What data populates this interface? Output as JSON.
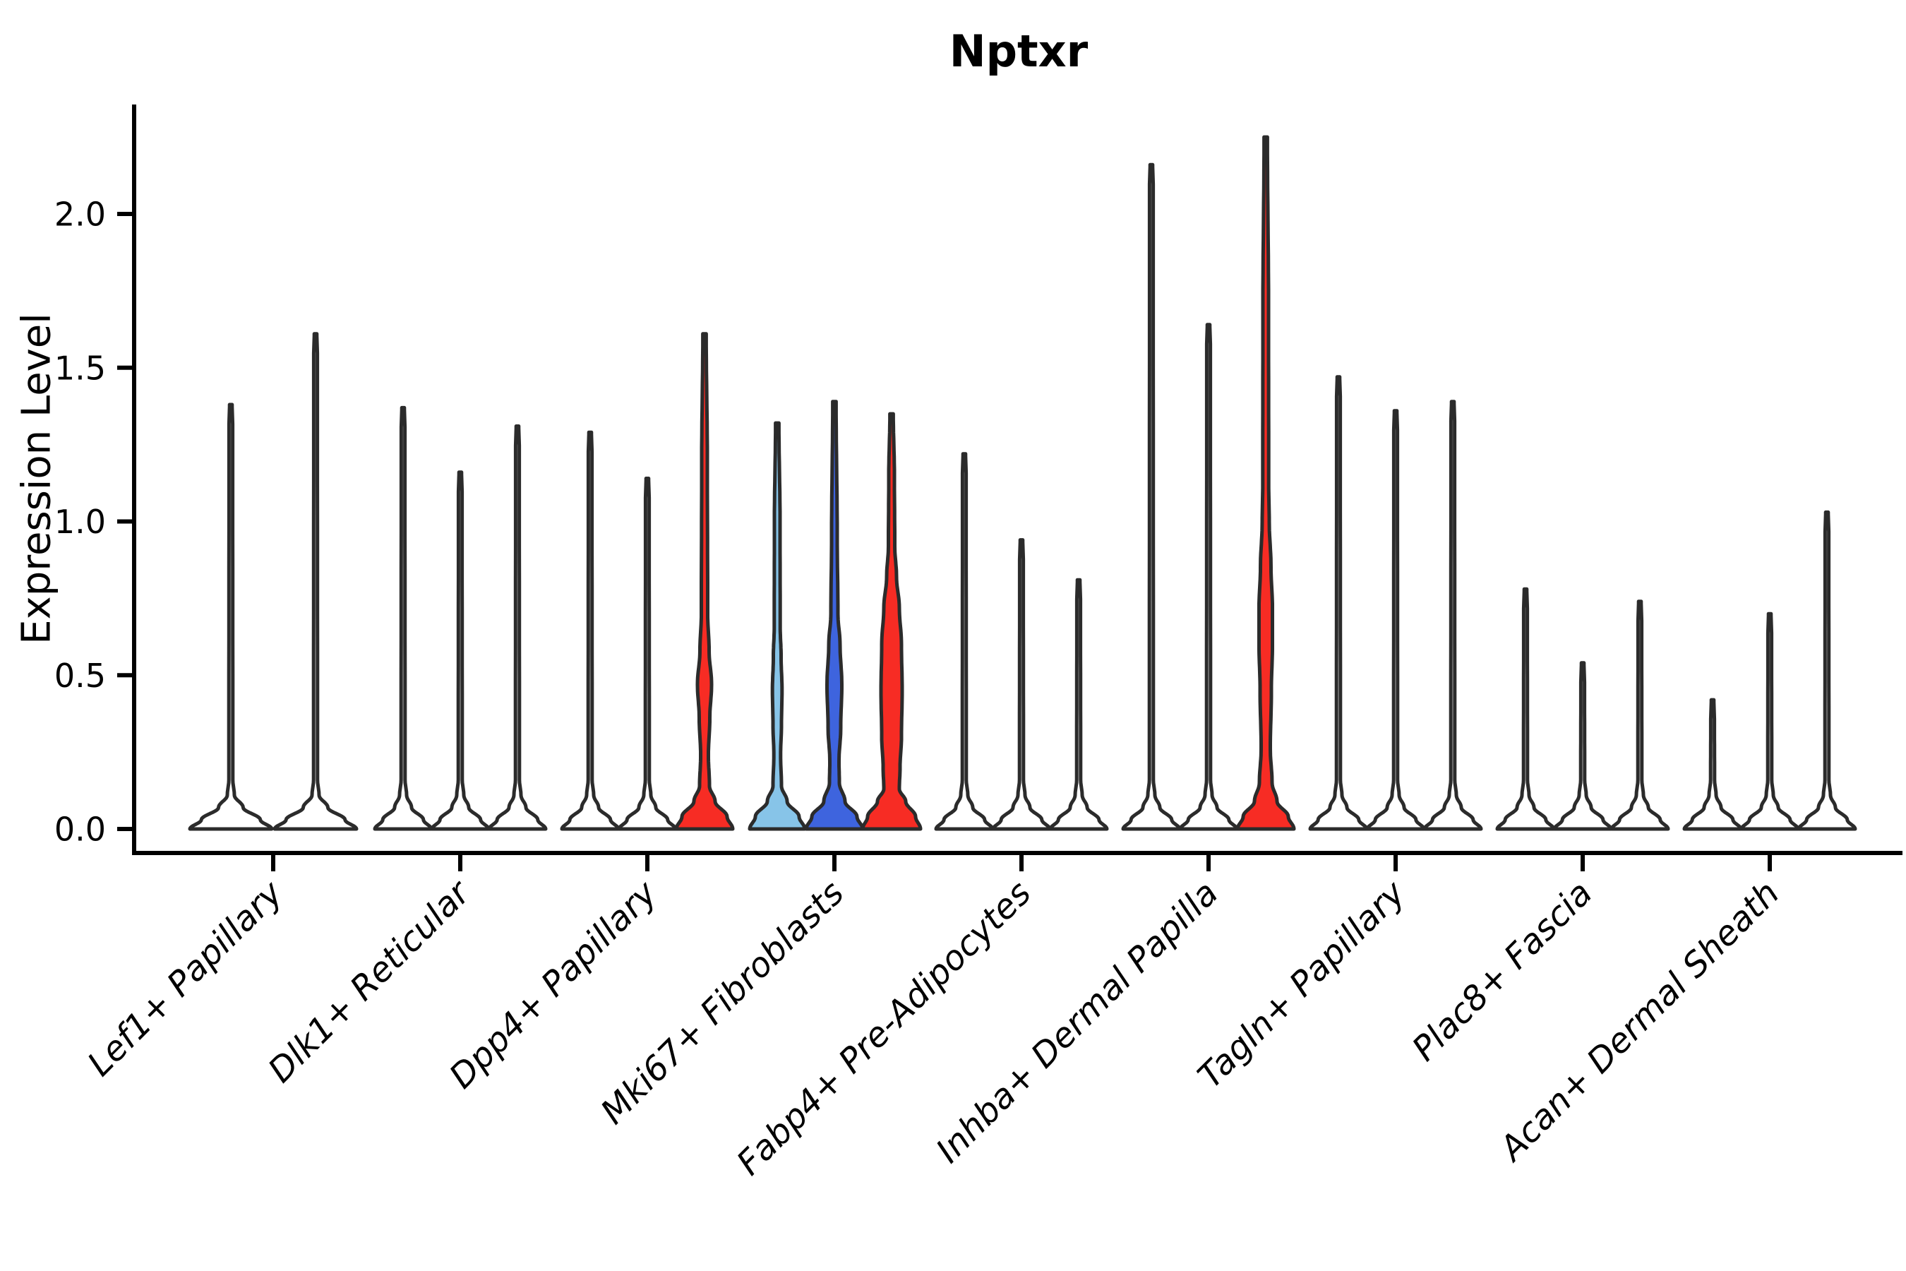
{
  "title": "Nptxr",
  "ylabel": "Expression Level",
  "colors": {
    "outline": "#2B2B2B",
    "plain": "#FFFFFF",
    "red": "#F72C24",
    "lightblue": "#87C4E8",
    "blue": "#3E64DE",
    "background": "#FFFFFF",
    "text": "#000000"
  },
  "chart_data": {
    "type": "violin",
    "title": "Nptxr",
    "xlabel": "",
    "ylabel": "Expression Level",
    "ylim": [
      0,
      2.35
    ],
    "yticks": [
      0.0,
      0.5,
      1.0,
      1.5,
      2.0
    ],
    "grid": false,
    "legend": "none",
    "categories": [
      "Lef1+ Papillary",
      "Dlk1+ Reticular",
      "Dpp4+ Papillary",
      "Mki67+ Fibroblasts",
      "Fabp4+ Pre-Adipocytes",
      "Inhba+ Dermal Papilla",
      "Tagln+ Papillary",
      "Plac8+ Fascia",
      "Acan+ Dermal Sheath"
    ],
    "groups": [
      {
        "category": "Lef1+ Papillary",
        "violins": [
          {
            "fill": "plain",
            "max": 1.38
          },
          {
            "fill": "plain",
            "max": 1.61
          }
        ]
      },
      {
        "category": "Dlk1+ Reticular",
        "violins": [
          {
            "fill": "plain",
            "max": 1.37
          },
          {
            "fill": "plain",
            "max": 1.16
          },
          {
            "fill": "plain",
            "max": 1.31
          }
        ]
      },
      {
        "category": "Dpp4+ Papillary",
        "violins": [
          {
            "fill": "plain",
            "max": 1.29
          },
          {
            "fill": "plain",
            "max": 1.14
          },
          {
            "fill": "red",
            "max": 1.61,
            "profile": [
              [
                0,
                40
              ],
              [
                0.04,
                32
              ],
              [
                0.09,
                15
              ],
              [
                0.14,
                7
              ],
              [
                0.24,
                5.5
              ],
              [
                0.36,
                7.5
              ],
              [
                0.47,
                10
              ],
              [
                0.58,
                6.5
              ],
              [
                0.7,
                4.5
              ],
              [
                1.2,
                4
              ],
              [
                1.61,
                2.4
              ]
            ]
          }
        ]
      },
      {
        "category": "Mki67+ Fibroblasts",
        "violins": [
          {
            "fill": "lightblue",
            "max": 1.32,
            "profile": [
              [
                0,
                39
              ],
              [
                0.04,
                31
              ],
              [
                0.09,
                14
              ],
              [
                0.14,
                6
              ],
              [
                0.24,
                4.8
              ],
              [
                0.34,
                6
              ],
              [
                0.45,
                6.8
              ],
              [
                0.56,
                5.5
              ],
              [
                0.66,
                4.2
              ],
              [
                1.0,
                4
              ],
              [
                1.32,
                2.4
              ]
            ]
          },
          {
            "fill": "blue",
            "max": 1.39,
            "profile": [
              [
                0,
                40
              ],
              [
                0.04,
                32
              ],
              [
                0.09,
                15
              ],
              [
                0.15,
                7
              ],
              [
                0.22,
                6.5
              ],
              [
                0.33,
                9
              ],
              [
                0.47,
                10.5
              ],
              [
                0.6,
                8
              ],
              [
                0.7,
                5
              ],
              [
                0.95,
                4
              ],
              [
                1.39,
                2.4
              ]
            ]
          },
          {
            "fill": "red",
            "max": 1.35,
            "profile": [
              [
                0,
                41
              ],
              [
                0.04,
                34
              ],
              [
                0.09,
                20
              ],
              [
                0.13,
                11
              ],
              [
                0.2,
                12
              ],
              [
                0.3,
                14
              ],
              [
                0.45,
                15
              ],
              [
                0.6,
                14
              ],
              [
                0.72,
                11
              ],
              [
                0.82,
                7
              ],
              [
                0.92,
                4.5
              ],
              [
                1.15,
                4
              ],
              [
                1.35,
                2.4
              ]
            ]
          }
        ]
      },
      {
        "category": "Fabp4+ Pre-Adipocytes",
        "violins": [
          {
            "fill": "plain",
            "max": 1.22
          },
          {
            "fill": "plain",
            "max": 0.94
          },
          {
            "fill": "plain",
            "max": 0.81
          }
        ]
      },
      {
        "category": "Inhba+ Dermal Papilla",
        "violins": [
          {
            "fill": "plain",
            "max": 2.16
          },
          {
            "fill": "plain",
            "max": 1.64
          },
          {
            "fill": "red",
            "max": 2.25,
            "profile": [
              [
                0,
                40
              ],
              [
                0.04,
                32
              ],
              [
                0.09,
                16
              ],
              [
                0.15,
                9
              ],
              [
                0.26,
                6.5
              ],
              [
                0.45,
                8
              ],
              [
                0.6,
                9.5
              ],
              [
                0.72,
                9.5
              ],
              [
                0.85,
                7.5
              ],
              [
                1.0,
                5
              ],
              [
                1.12,
                4.2
              ],
              [
                1.7,
                4
              ],
              [
                2.25,
                2.4
              ]
            ]
          }
        ]
      },
      {
        "category": "Tagln+ Papillary",
        "violins": [
          {
            "fill": "plain",
            "max": 1.47
          },
          {
            "fill": "plain",
            "max": 1.36
          },
          {
            "fill": "plain",
            "max": 1.39
          }
        ]
      },
      {
        "category": "Plac8+ Fascia",
        "violins": [
          {
            "fill": "plain",
            "max": 0.78
          },
          {
            "fill": "plain",
            "max": 0.54
          },
          {
            "fill": "plain",
            "max": 0.74
          }
        ]
      },
      {
        "category": "Acan+ Dermal Sheath",
        "violins": [
          {
            "fill": "plain",
            "max": 0.42
          },
          {
            "fill": "plain",
            "max": 0.7
          },
          {
            "fill": "plain",
            "max": 1.03
          }
        ]
      }
    ]
  }
}
